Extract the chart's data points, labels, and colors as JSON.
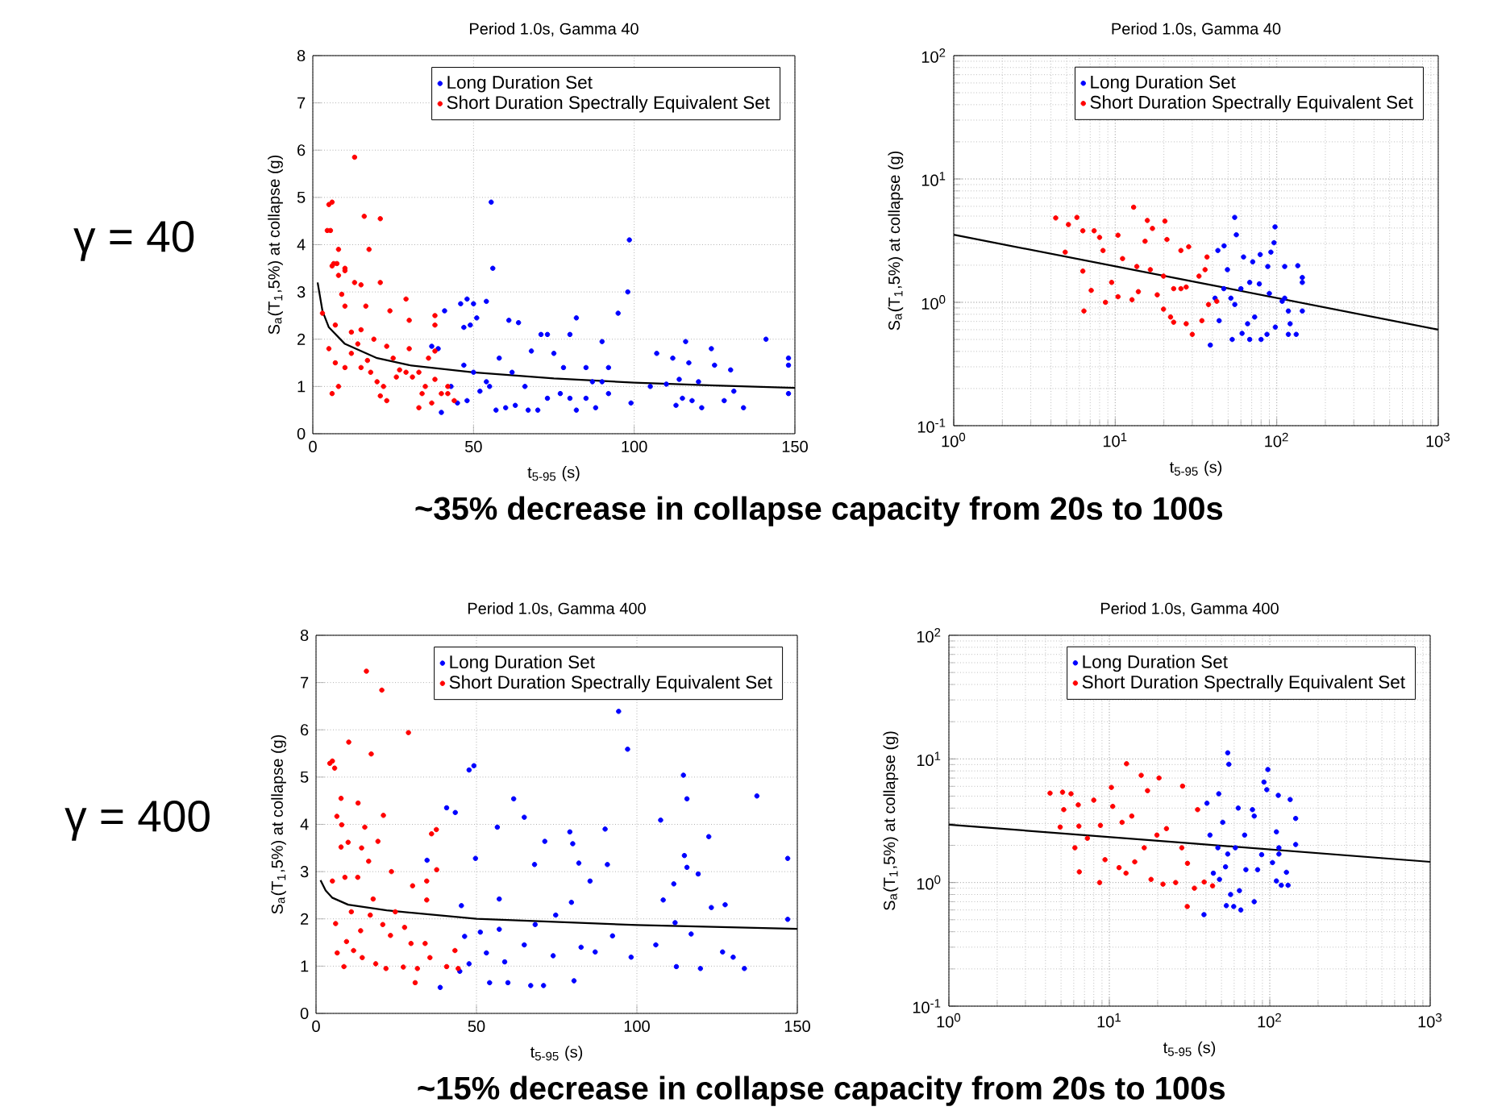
{
  "chart_data": [
    {
      "type": "scatter",
      "title": "Period 1.0s, Gamma 40",
      "xlabel": "t$_{5-95}$ (s)",
      "ylabel": "S$_{a}$(T$_{1}$,5%) at collapse (g)",
      "xlim": [
        0,
        150
      ],
      "ylim": [
        0,
        8
      ],
      "xticks": [
        0,
        50,
        100,
        150
      ],
      "yticks": [
        0,
        1,
        2,
        3,
        4,
        5,
        6,
        7,
        8
      ],
      "grid": true,
      "legend": "top right",
      "marker": "circle",
      "annotations": [
        "γ = 40",
        "~35% decrease in collapse capacity from 20s to 100s"
      ],
      "series": [
        {
          "name": "Long Duration Set",
          "color": "#0000ff",
          "x": [
            55.5,
            56,
            98.5,
            98,
            95,
            46,
            48,
            50,
            54,
            41,
            47,
            49,
            51,
            61,
            64,
            82,
            71,
            73,
            80,
            90,
            116,
            141,
            124,
            148,
            148,
            37,
            39,
            40,
            45,
            48,
            52,
            55,
            57,
            60,
            63,
            67,
            70,
            73,
            77,
            80,
            82,
            85,
            88,
            92,
            99,
            105,
            107,
            112,
            113,
            115,
            118,
            121,
            125,
            130,
            131,
            134,
            128,
            148,
            110,
            114,
            117,
            120,
            90,
            92,
            85,
            75,
            68,
            58,
            54,
            50,
            47,
            43,
            62,
            66,
            78,
            87
          ],
          "values": [
            4.9,
            3.5,
            4.1,
            3.0,
            2.55,
            2.75,
            2.85,
            2.75,
            2.8,
            2.6,
            2.25,
            2.3,
            2.45,
            2.4,
            2.35,
            2.45,
            2.1,
            2.1,
            2.1,
            1.95,
            1.95,
            2.0,
            1.8,
            1.6,
            1.45,
            1.85,
            1.8,
            0.45,
            0.65,
            0.7,
            0.9,
            1.0,
            0.5,
            0.55,
            0.6,
            0.5,
            0.5,
            0.75,
            0.85,
            0.75,
            0.5,
            0.75,
            0.55,
            0.85,
            0.65,
            1.0,
            1.7,
            1.6,
            0.6,
            0.75,
            0.7,
            0.55,
            1.45,
            1.35,
            0.9,
            0.55,
            0.7,
            0.85,
            1.05,
            1.15,
            1.5,
            1.1,
            1.1,
            1.4,
            1.4,
            1.7,
            1.75,
            1.6,
            1.1,
            1.3,
            1.45,
            1.0,
            1.3,
            1.0,
            1.4,
            1.1
          ]
        },
        {
          "name": "Short Duration Spectrally Equivalent Set",
          "color": "#ff0000",
          "x": [
            5,
            6,
            4.5,
            5.5,
            13,
            16,
            21,
            17.5,
            6.5,
            7.5,
            10,
            8,
            6,
            8,
            10,
            21,
            13,
            15,
            3,
            7,
            9,
            10,
            29,
            24,
            30,
            38,
            38,
            16.5,
            5,
            7,
            8,
            6,
            10,
            12,
            14,
            15,
            17,
            18,
            20,
            22,
            21,
            23,
            25,
            27,
            29,
            31,
            33,
            35,
            34,
            37,
            38,
            40,
            42,
            42,
            44,
            30,
            23,
            19,
            12,
            36,
            38,
            33,
            26,
            15
          ],
          "values": [
            4.85,
            4.9,
            4.3,
            4.3,
            5.85,
            4.6,
            4.55,
            3.9,
            3.6,
            3.6,
            3.45,
            3.9,
            3.55,
            3.35,
            3.5,
            3.2,
            3.2,
            3.15,
            2.55,
            2.3,
            2.95,
            2.7,
            2.85,
            2.6,
            2.4,
            2.5,
            2.3,
            2.7,
            1.8,
            1.5,
            1.0,
            0.85,
            1.4,
            1.7,
            1.9,
            2.2,
            1.55,
            1.3,
            1.1,
            1.0,
            0.8,
            0.7,
            1.6,
            1.35,
            1.3,
            1.2,
            0.55,
            1.0,
            0.85,
            0.65,
            1.15,
            0.85,
            0.85,
            1.0,
            0.7,
            1.8,
            1.85,
            2.0,
            2.15,
            1.6,
            1.75,
            1.3,
            1.2,
            1.4
          ]
        },
        {
          "type": "line",
          "marker": "none",
          "color": "#000000",
          "x": [
            1.5,
            3,
            5,
            10,
            20,
            30,
            50,
            75,
            100,
            125,
            150
          ],
          "values": [
            3.2,
            2.6,
            2.25,
            1.9,
            1.6,
            1.45,
            1.3,
            1.17,
            1.08,
            1.02,
            0.97
          ]
        }
      ]
    },
    {
      "type": "scatter",
      "title": "Period 1.0s, Gamma 40",
      "xlabel": "t$_{5-95}$ (s)",
      "ylabel": "S$_{a}$(T$_{1}$,5%) at collapse (g)",
      "log": "xy",
      "xlim": [
        1,
        1000
      ],
      "ylim": [
        0.1,
        100
      ],
      "xticks": [
        {
          "value": 1,
          "label": "10$^{0}$"
        },
        {
          "value": 10,
          "label": "10$^{1}$"
        },
        {
          "value": 100,
          "label": "10$^{2}$"
        },
        {
          "value": 1000,
          "label": "10$^{3}$"
        }
      ],
      "yticks": [
        {
          "value": 0.1,
          "label": "10$^{-1}$"
        },
        {
          "value": 1,
          "label": "10$^{0}$"
        },
        {
          "value": 10,
          "label": "10$^{1}$"
        },
        {
          "value": 100,
          "label": "10$^{2}$"
        }
      ],
      "grid": true,
      "legend": "top right",
      "marker": "circle",
      "series": [
        {
          "name": "Long Duration Set",
          "color": "#0000ff",
          "x": [
            54.9,
            56.2,
            97.6,
            96.2,
            92,
            43.2,
            47.2,
            62.3,
            71,
            79,
            112,
            135,
            144,
            144,
            38.8,
            44,
            53,
            61,
            68,
            80,
            87,
            98,
            118,
            132,
            144,
            121,
            73,
            66,
            55,
            52,
            60,
            68,
            78,
            90,
            108,
            112,
            118,
            47,
            41.5,
            49.5,
            88
          ],
          "values": [
            4.88,
            3.53,
            4.09,
            3.04,
            2.55,
            2.63,
            2.87,
            2.33,
            2.13,
            2.44,
            1.95,
            1.98,
            1.59,
            1.45,
            0.45,
            0.71,
            0.5,
            0.56,
            0.5,
            0.5,
            0.55,
            0.63,
            0.55,
            0.55,
            0.85,
            0.67,
            0.76,
            0.67,
            0.96,
            1.08,
            1.29,
            1.45,
            1.41,
            1.18,
            1.02,
            1.08,
            0.85,
            1.29,
            1.08,
            1.84,
            1.95
          ]
        },
        {
          "name": "Short Duration Spectrally Equivalent Set",
          "color": "#ff0000",
          "x": [
            4.28,
            5.13,
            5.79,
            13.0,
            15.8,
            20.3,
            4.9,
            6.3,
            7.4,
            8.0,
            10.4,
            6.3,
            6.4,
            8.7,
            9.5,
            10.4,
            12.7,
            15.3,
            17.0,
            20.9,
            28.5,
            25.5,
            11.1,
            13.6,
            16.5,
            19.9,
            23,
            27.5,
            33,
            30,
            27.5,
            23,
            19.9,
            22,
            34.4,
            37.8,
            42.5,
            36,
            37,
            13.9,
            18.2,
            25.5,
            8.4,
            7.1
          ],
          "values": [
            4.83,
            4.27,
            4.88,
            5.9,
            4.61,
            4.55,
            2.55,
            3.8,
            3.8,
            3.36,
            3.5,
            1.79,
            0.85,
            1.0,
            1.45,
            1.11,
            1.05,
            3.13,
            3.97,
            3.23,
            2.82,
            2.63,
            2.26,
            1.95,
            1.84,
            1.63,
            1.29,
            1.33,
            1.63,
            0.55,
            0.67,
            0.69,
            0.88,
            0.76,
            0.71,
            0.96,
            1.02,
            1.84,
            2.33,
            1.22,
            1.15,
            1.29,
            2.63,
            1.25
          ]
        },
        {
          "type": "line",
          "marker": "none",
          "color": "#000000",
          "x": [
            1,
            31.6,
            1000
          ],
          "values": [
            3.53,
            1.46,
            0.6
          ]
        }
      ]
    },
    {
      "type": "scatter",
      "title": "Period 1.0s, Gamma 400",
      "xlabel": "t$_{5-95}$ (s)",
      "ylabel": "S$_{a}$(T$_{1}$,5%) at collapse (g)",
      "xlim": [
        0,
        150
      ],
      "ylim": [
        0,
        8
      ],
      "xticks": [
        0,
        50,
        100,
        150
      ],
      "yticks": [
        0,
        1,
        2,
        3,
        4,
        5,
        6,
        7,
        8
      ],
      "grid": true,
      "legend": "top right",
      "marker": "circle",
      "annotations": [
        "γ = 400",
        "~15% decrease in collapse capacity from 20s to 100s"
      ],
      "series": [
        {
          "name": "Long Duration Set",
          "color": "#0000ff",
          "x": [
            94.3,
            97.1,
            49.2,
            47.7,
            114.5,
            115.6,
            137.4,
            61.6,
            40.7,
            43.4,
            64.9,
            107.4,
            56.5,
            90.1,
            122.4,
            71.3,
            79.1,
            80,
            147,
            114.8,
            34.6,
            49.7,
            68.1,
            81.9,
            90.8,
            115.6,
            119.1,
            85.4,
            111.5,
            108.2,
            123.2,
            127.5,
            147,
            38.7,
            44.8,
            54.1,
            59.8,
            66.9,
            70.9,
            80.4,
            133.5,
            130,
            126.7,
            112.3,
            119.8,
            105.9,
            98.2,
            92.4,
            87,
            82.6,
            73.9,
            64.9,
            58.8,
            53.1,
            47.7,
            46.3,
            51.2,
            57.1,
            68.3,
            74.7,
            79.6,
            116.9,
            111.9,
            45.3,
            57.1
          ],
          "values": [
            6.39,
            5.59,
            5.24,
            5.15,
            5.04,
            4.54,
            4.6,
            4.54,
            4.35,
            4.25,
            4.15,
            4.09,
            3.94,
            3.9,
            3.74,
            3.64,
            3.84,
            3.59,
            3.28,
            3.34,
            3.24,
            3.28,
            3.15,
            3.18,
            3.15,
            3.09,
            2.95,
            2.8,
            2.74,
            2.4,
            2.24,
            2.3,
            1.99,
            0.55,
            0.89,
            0.65,
            0.65,
            0.59,
            0.59,
            0.69,
            0.95,
            1.19,
            1.3,
            0.99,
            0.95,
            1.45,
            1.19,
            1.64,
            1.3,
            1.4,
            1.22,
            1.45,
            1.09,
            1.28,
            1.05,
            1.63,
            1.72,
            1.78,
            1.88,
            2.08,
            2.35,
            1.68,
            1.92,
            2.28,
            2.42
          ]
        },
        {
          "name": "Short Duration Spectrally Equivalent Set",
          "color": "#ff0000",
          "x": [
            15.7,
            20.5,
            28.8,
            10.2,
            17.2,
            4.3,
            5.1,
            5.8,
            7.8,
            13.1,
            21,
            6.5,
            8,
            15.2,
            19.3,
            7.8,
            10,
            14.2,
            16.4,
            5.1,
            9,
            13,
            23.5,
            30.1,
            34.5,
            36,
            37.5,
            37.6,
            34.5,
            6.1,
            6.6,
            8.7,
            9.5,
            11.7,
            14.4,
            18.6,
            21.8,
            23.2,
            27.2,
            30.9,
            31.6,
            34,
            35.5,
            40.7,
            44.3,
            43.3,
            17.8,
            20.8,
            24.7,
            27.6,
            16.9,
            13.9,
            29.6,
            11
          ],
          "values": [
            7.24,
            6.84,
            5.94,
            5.74,
            5.49,
            5.29,
            5.34,
            5.19,
            4.55,
            4.45,
            4.19,
            4.17,
            3.99,
            3.94,
            3.64,
            3.52,
            3.62,
            3.5,
            3.22,
            2.8,
            2.88,
            2.88,
            3.0,
            2.7,
            2.8,
            3.8,
            3.89,
            3.04,
            2.4,
            1.9,
            1.28,
            0.99,
            1.52,
            1.33,
            1.18,
            1.05,
            0.95,
            1.65,
            0.98,
            0.65,
            0.95,
            1.48,
            1.18,
            0.99,
            0.95,
            1.33,
            2.42,
            1.88,
            2.15,
            1.82,
            2.08,
            1.75,
            1.48,
            2.15
          ]
        },
        {
          "type": "line",
          "marker": "none",
          "color": "#000000",
          "x": [
            1.4,
            3,
            5,
            10,
            22,
            50,
            100,
            150
          ],
          "values": [
            2.82,
            2.6,
            2.45,
            2.3,
            2.18,
            2.0,
            1.87,
            1.79
          ]
        }
      ]
    },
    {
      "type": "scatter",
      "title": "Period 1.0s, Gamma 400",
      "xlabel": "t$_{5-95}$ (s)",
      "ylabel": "S$_{a}$(T$_{1}$,5%) at collapse (g)",
      "log": "xy",
      "xlim": [
        1,
        1000
      ],
      "ylim": [
        0.1,
        100
      ],
      "xticks": [
        {
          "value": 1,
          "label": "10$^{0}$"
        },
        {
          "value": 10,
          "label": "10$^{1}$"
        },
        {
          "value": 100,
          "label": "10$^{2}$"
        },
        {
          "value": 1000,
          "label": "10$^{3}$"
        }
      ],
      "yticks": [
        {
          "value": 0.1,
          "label": "10$^{-1}$"
        },
        {
          "value": 1,
          "label": "10$^{0}$"
        },
        {
          "value": 10,
          "label": "10$^{1}$"
        },
        {
          "value": 100,
          "label": "10$^{2}$"
        }
      ],
      "grid": true,
      "legend": "top right",
      "marker": "circle",
      "series": [
        {
          "name": "Long Duration Set",
          "color": "#0000ff",
          "x": [
            54.7,
            55.6,
            97.3,
            92,
            95.8,
            48.1,
            40.6,
            113,
            134,
            145,
            145,
            63.6,
            78,
            38.9,
            53.6,
            59.6,
            66,
            80,
            57,
            64.7,
            110,
            118,
            130,
            127,
            104,
            89,
            84,
            71,
            48.6,
            44.5,
            53,
            61,
            69.7,
            80,
            50.9,
            42.4,
            110,
            114,
            114,
            47.5,
            54.7
          ],
          "values": [
            11.2,
            9.05,
            8.21,
            6.49,
            5.64,
            5.22,
            4.38,
            5.07,
            4.69,
            3.3,
            2.03,
            4.0,
            3.89,
            0.55,
            0.65,
            0.64,
            0.6,
            0.7,
            0.8,
            0.86,
            1.03,
            0.95,
            0.95,
            1.21,
            1.45,
            1.68,
            1.27,
            1.27,
            1.06,
            1.19,
            1.34,
            1.91,
            2.42,
            3.45,
            3.07,
            2.42,
            2.57,
            1.91,
            1.7,
            1.91,
            1.7
          ]
        },
        {
          "name": "Short Duration Spectrally Equivalent Set",
          "color": "#ff0000",
          "x": [
            4.27,
            5.11,
            5.77,
            12.8,
            15.8,
            20.4,
            28.6,
            10.3,
            17.3,
            5.2,
            6.4,
            8.0,
            4.94,
            6.46,
            6.1,
            6.5,
            8.7,
            7.3,
            9.4,
            11.5,
            12.7,
            14.4,
            18.2,
            21.6,
            25.9,
            30.6,
            33.9,
            39,
            44,
            13.8,
            19.8,
            22.7,
            16.5,
            28.3,
            30.7,
            35.5,
            10.5,
            12.0,
            8.8
          ],
          "values": [
            5.28,
            5.38,
            5.22,
            9.14,
            7.37,
            7.01,
            6.02,
            5.88,
            5.53,
            3.89,
            4.25,
            4.64,
            2.81,
            2.86,
            1.91,
            1.22,
            1.0,
            2.28,
            1.53,
            1.32,
            1.19,
            1.47,
            1.06,
            0.97,
            1.0,
            0.64,
            0.9,
            1.01,
            0.94,
            3.45,
            2.42,
            2.73,
            1.91,
            1.91,
            1.43,
            3.89,
            4.13,
            3.07,
            2.9
          ]
        },
        {
          "type": "line",
          "marker": "none",
          "color": "#000000",
          "x": [
            1,
            31.6,
            1000
          ],
          "values": [
            2.94,
            2.08,
            1.47
          ]
        }
      ]
    }
  ]
}
